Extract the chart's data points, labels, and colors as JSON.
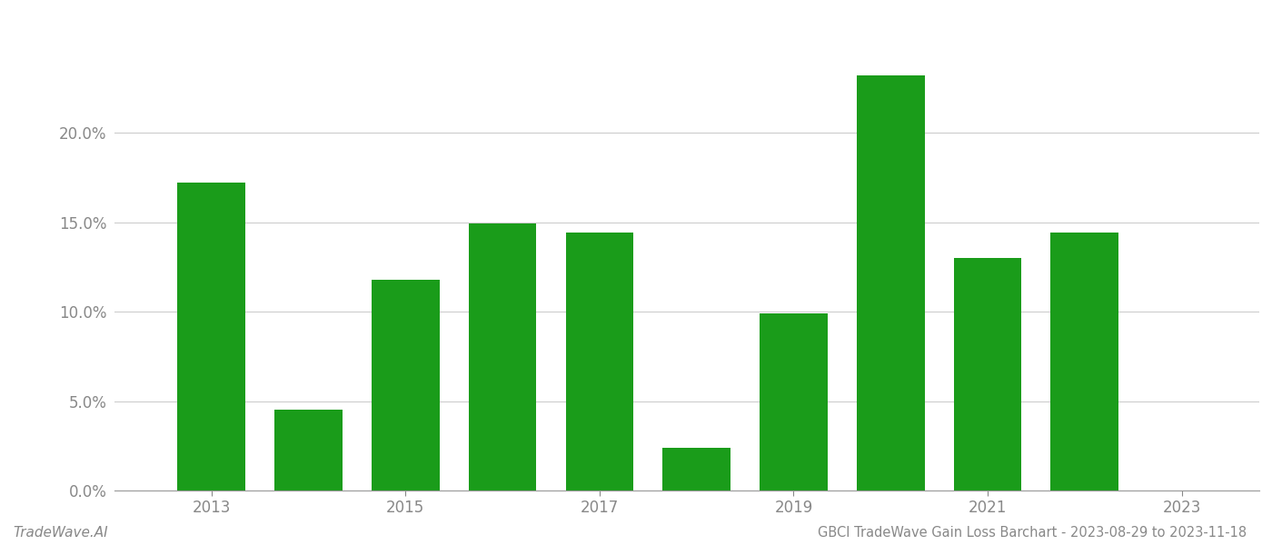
{
  "years": [
    2013,
    2014,
    2015,
    2016,
    2017,
    2018,
    2019,
    2020,
    2021,
    2022
  ],
  "values": [
    0.172,
    0.045,
    0.118,
    0.149,
    0.144,
    0.024,
    0.099,
    0.232,
    0.13,
    0.144
  ],
  "bar_color": "#1a9c1a",
  "background_color": "#ffffff",
  "grid_color": "#cccccc",
  "axis_color": "#999999",
  "tick_color": "#888888",
  "title_text": "GBCI TradeWave Gain Loss Barchart - 2023-08-29 to 2023-11-18",
  "watermark_text": "TradeWave.AI",
  "ylim": [
    0,
    0.265
  ],
  "yticks": [
    0.0,
    0.05,
    0.1,
    0.15,
    0.2
  ],
  "xtick_labels": [
    "2013",
    "2015",
    "2017",
    "2019",
    "2021",
    "2023"
  ],
  "xtick_positions": [
    2013,
    2015,
    2017,
    2019,
    2021,
    2023
  ],
  "xlim": [
    2012.0,
    2023.8
  ],
  "title_fontsize": 10.5,
  "watermark_fontsize": 11,
  "tick_fontsize": 12,
  "bar_width": 0.7
}
